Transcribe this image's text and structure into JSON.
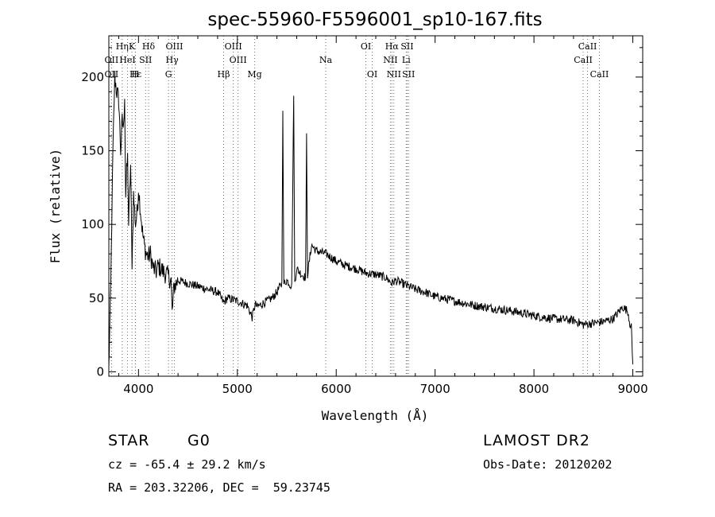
{
  "chart_data": {
    "type": "line",
    "title": "spec-55960-F5596001_sp10-167.fits",
    "xlabel": "Wavelength (Å)",
    "ylabel": "Flux (relative)",
    "xlim": [
      3700,
      9100
    ],
    "ylim": [
      -3,
      228
    ],
    "xticks": [
      4000,
      5000,
      6000,
      7000,
      8000,
      9000
    ],
    "yticks": [
      0,
      50,
      100,
      150,
      200
    ],
    "grid": false,
    "line_color": "#000000",
    "marker_line_color": "#e03c3c",
    "series": [
      {
        "x": [
          3700,
          3720,
          3740,
          3760,
          3780,
          3800,
          3820,
          3835,
          3850,
          3860,
          3870,
          3880,
          3890,
          3900,
          3920,
          3935,
          3950,
          3970,
          3990,
          4000,
          4020,
          4040,
          4060,
          4080,
          4100,
          4120,
          4150,
          4180,
          4200,
          4250,
          4300,
          4330,
          4340,
          4360,
          4400,
          4500,
          4600,
          4700,
          4800,
          4861,
          4900,
          5000,
          5100,
          5150,
          5180,
          5200,
          5250,
          5300,
          5350,
          5400,
          5450,
          5460,
          5470,
          5500,
          5550,
          5570,
          5580,
          5600,
          5650,
          5690,
          5700,
          5710,
          5750,
          5800,
          5900,
          6000,
          6100,
          6200,
          6300,
          6400,
          6500,
          6563,
          6600,
          6700,
          6800,
          6900,
          7000,
          7200,
          7400,
          7600,
          7800,
          8000,
          8200,
          8400,
          8500,
          8600,
          8700,
          8800,
          8850,
          8900,
          8950,
          8970,
          8985,
          9000
        ],
        "y": [
          2,
          60,
          145,
          200,
          190,
          185,
          150,
          170,
          165,
          190,
          120,
          135,
          145,
          100,
          140,
          75,
          120,
          100,
          110,
          125,
          110,
          95,
          85,
          80,
          78,
          80,
          70,
          68,
          72,
          68,
          65,
          62,
          40,
          58,
          62,
          60,
          58,
          56,
          54,
          47,
          50,
          48,
          45,
          37,
          46,
          44,
          46,
          48,
          50,
          54,
          60,
          180,
          60,
          62,
          58,
          190,
          60,
          70,
          66,
          64,
          160,
          66,
          86,
          82,
          80,
          75,
          72,
          70,
          67,
          66,
          64,
          60,
          62,
          59,
          56,
          54,
          51,
          48,
          45,
          43,
          41,
          38,
          36,
          35,
          32,
          33,
          34,
          36,
          40,
          44,
          41,
          33,
          30,
          5
        ]
      }
    ],
    "lines": [
      {
        "label": "Hη",
        "wave": 3835,
        "row": 0
      },
      {
        "label": "K",
        "wave": 3934,
        "row": 0
      },
      {
        "label": "Hδ",
        "wave": 4102,
        "row": 0
      },
      {
        "label": "OIII",
        "wave": 4363,
        "row": 0
      },
      {
        "label": "OIII",
        "wave": 4959,
        "row": 0
      },
      {
        "label": "OI",
        "wave": 6300,
        "row": 0
      },
      {
        "label": "Hα",
        "wave": 6563,
        "row": 0
      },
      {
        "label": "SII",
        "wave": 6717,
        "row": 0
      },
      {
        "label": "CaII",
        "wave": 8542,
        "row": 0
      },
      {
        "label": "OII",
        "wave": 3727,
        "row": 1
      },
      {
        "label": "HeI",
        "wave": 3889,
        "row": 1
      },
      {
        "label": "SII",
        "wave": 4072,
        "row": 1
      },
      {
        "label": "Hγ",
        "wave": 4340,
        "row": 1
      },
      {
        "label": "OIII",
        "wave": 5007,
        "row": 1
      },
      {
        "label": "Na",
        "wave": 5893,
        "row": 1
      },
      {
        "label": "NII",
        "wave": 6548,
        "row": 1
      },
      {
        "label": "Li",
        "wave": 6708,
        "row": 1
      },
      {
        "label": "CaII",
        "wave": 8498,
        "row": 1
      },
      {
        "label": "OII",
        "wave": 3727,
        "row": 2
      },
      {
        "label": "Hε",
        "wave": 3970,
        "row": 2
      },
      {
        "label": "H",
        "wave": 3968,
        "row": 2
      },
      {
        "label": "G",
        "wave": 4304,
        "row": 2
      },
      {
        "label": "Hβ",
        "wave": 4861,
        "row": 2
      },
      {
        "label": "Mg",
        "wave": 5175,
        "row": 2
      },
      {
        "label": "OI",
        "wave": 6364,
        "row": 2
      },
      {
        "label": "NII",
        "wave": 6583,
        "row": 2
      },
      {
        "label": "SII",
        "wave": 6731,
        "row": 2
      },
      {
        "label": "CaII",
        "wave": 8662,
        "row": 2
      }
    ]
  },
  "info": {
    "object_class": "STAR",
    "subclass": "G0",
    "survey": "LAMOST DR2",
    "redshift": "cz = -65.4 ± 29.2 km/s",
    "obs_date": "Obs-Date: 20120202",
    "coords": "RA = 203.32206, DEC =  59.23745"
  }
}
